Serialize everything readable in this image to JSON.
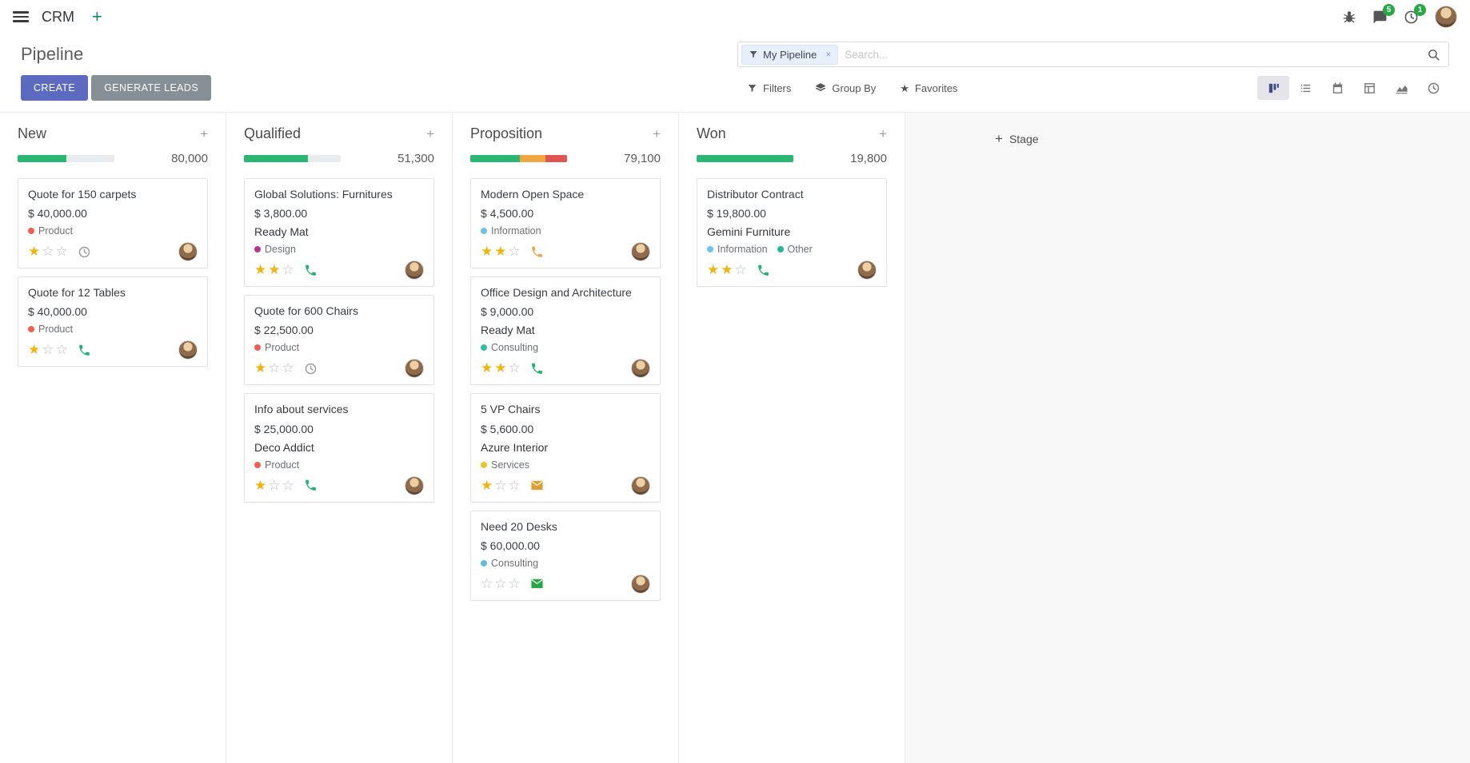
{
  "colors": {
    "primary_button": "#5c6bc0",
    "secondary_button": "#878f96",
    "badge_green": "#28a745",
    "progress_success": "#2bb673",
    "progress_warning": "#f0a742",
    "progress_danger": "#e25555"
  },
  "navbar": {
    "app_name": "CRM",
    "plus_label": "+",
    "messages_badge": "5",
    "activities_badge": "1"
  },
  "control_panel": {
    "title": "Pipeline",
    "create_label": "CREATE",
    "generate_leads_label": "GENERATE LEADS",
    "search": {
      "facet_label": "My Pipeline",
      "placeholder": "Search...",
      "remove_label": "×"
    },
    "filters_label": "Filters",
    "group_by_label": "Group By",
    "favorites_label": "Favorites"
  },
  "views": [
    {
      "name": "kanban",
      "active": true
    },
    {
      "name": "list",
      "active": false
    },
    {
      "name": "calendar",
      "active": false
    },
    {
      "name": "pivot",
      "active": false
    },
    {
      "name": "graph",
      "active": false
    },
    {
      "name": "activity",
      "active": false
    }
  ],
  "board": {
    "add_stage_label": "Stage",
    "add_record_label": "+",
    "columns": [
      {
        "name": "New",
        "counter": "80,000",
        "progress": [
          {
            "color": "#2bb673",
            "pct": 50
          }
        ],
        "cards": [
          {
            "title": "Quote for 150 carpets",
            "amount": "$ 40,000.00",
            "tags": [
              {
                "label": "Product",
                "color": "#f06050"
              }
            ],
            "stars": 1,
            "activity": {
              "icon": "clock",
              "color": "#9a9a9a"
            }
          },
          {
            "title": "Quote for 12 Tables",
            "amount": "$ 40,000.00",
            "tags": [
              {
                "label": "Product",
                "color": "#f06050"
              }
            ],
            "stars": 1,
            "activity": {
              "icon": "phone",
              "color": "#23b371"
            }
          }
        ]
      },
      {
        "name": "Qualified",
        "counter": "51,300",
        "progress": [
          {
            "color": "#2bb673",
            "pct": 66
          }
        ],
        "cards": [
          {
            "title": "Global Solutions: Furnitures",
            "amount": "$ 3,800.00",
            "partner": "Ready Mat",
            "tags": [
              {
                "label": "Design",
                "color": "#b5368e"
              }
            ],
            "stars": 2,
            "activity": {
              "icon": "phone",
              "color": "#23b371"
            }
          },
          {
            "title": "Quote for 600 Chairs",
            "amount": "$ 22,500.00",
            "tags": [
              {
                "label": "Product",
                "color": "#f06050"
              }
            ],
            "stars": 1,
            "activity": {
              "icon": "clock",
              "color": "#9a9a9a"
            }
          },
          {
            "title": "Info about services",
            "amount": "$ 25,000.00",
            "partner": "Deco Addict",
            "tags": [
              {
                "label": "Product",
                "color": "#f06050"
              }
            ],
            "stars": 1,
            "activity": {
              "icon": "phone",
              "color": "#23b371"
            }
          }
        ]
      },
      {
        "name": "Proposition",
        "counter": "79,100",
        "progress": [
          {
            "color": "#2bb673",
            "pct": 51
          },
          {
            "color": "#f0a742",
            "pct": 27
          },
          {
            "color": "#e25555",
            "pct": 22
          }
        ],
        "cards": [
          {
            "title": "Modern Open Space",
            "amount": "$ 4,500.00",
            "tags": [
              {
                "label": "Information",
                "color": "#6cc1ed"
              }
            ],
            "stars": 2,
            "activity": {
              "icon": "phone",
              "color": "#e8ab4a"
            }
          },
          {
            "title": "Office Design and Architecture",
            "amount": "$ 9,000.00",
            "partner": "Ready Mat",
            "tags": [
              {
                "label": "Consulting",
                "color": "#2fc1a5"
              }
            ],
            "stars": 2,
            "activity": {
              "icon": "phone",
              "color": "#23b371"
            }
          },
          {
            "title": "5 VP Chairs",
            "amount": "$ 5,600.00",
            "partner": "Azure Interior",
            "tags": [
              {
                "label": "Services",
                "color": "#ebc62d"
              }
            ],
            "stars": 1,
            "activity": {
              "icon": "envelope",
              "color": "#dd9f33"
            }
          },
          {
            "title": "Need 20 Desks",
            "amount": "$ 60,000.00",
            "tags": [
              {
                "label": "Consulting",
                "color": "#5bc0de"
              }
            ],
            "stars": 0,
            "activity": {
              "icon": "envelope",
              "color": "#28a745"
            }
          }
        ]
      },
      {
        "name": "Won",
        "counter": "19,800",
        "progress": [
          {
            "color": "#2bb673",
            "pct": 100
          }
        ],
        "cards": [
          {
            "title": "Distributor Contract",
            "amount": "$ 19,800.00",
            "partner": "Gemini Furniture",
            "tags": [
              {
                "label": "Information",
                "color": "#6cc1ed"
              },
              {
                "label": "Other",
                "color": "#21b799"
              }
            ],
            "stars": 2,
            "activity": {
              "icon": "phone",
              "color": "#23b371"
            }
          }
        ]
      }
    ]
  }
}
